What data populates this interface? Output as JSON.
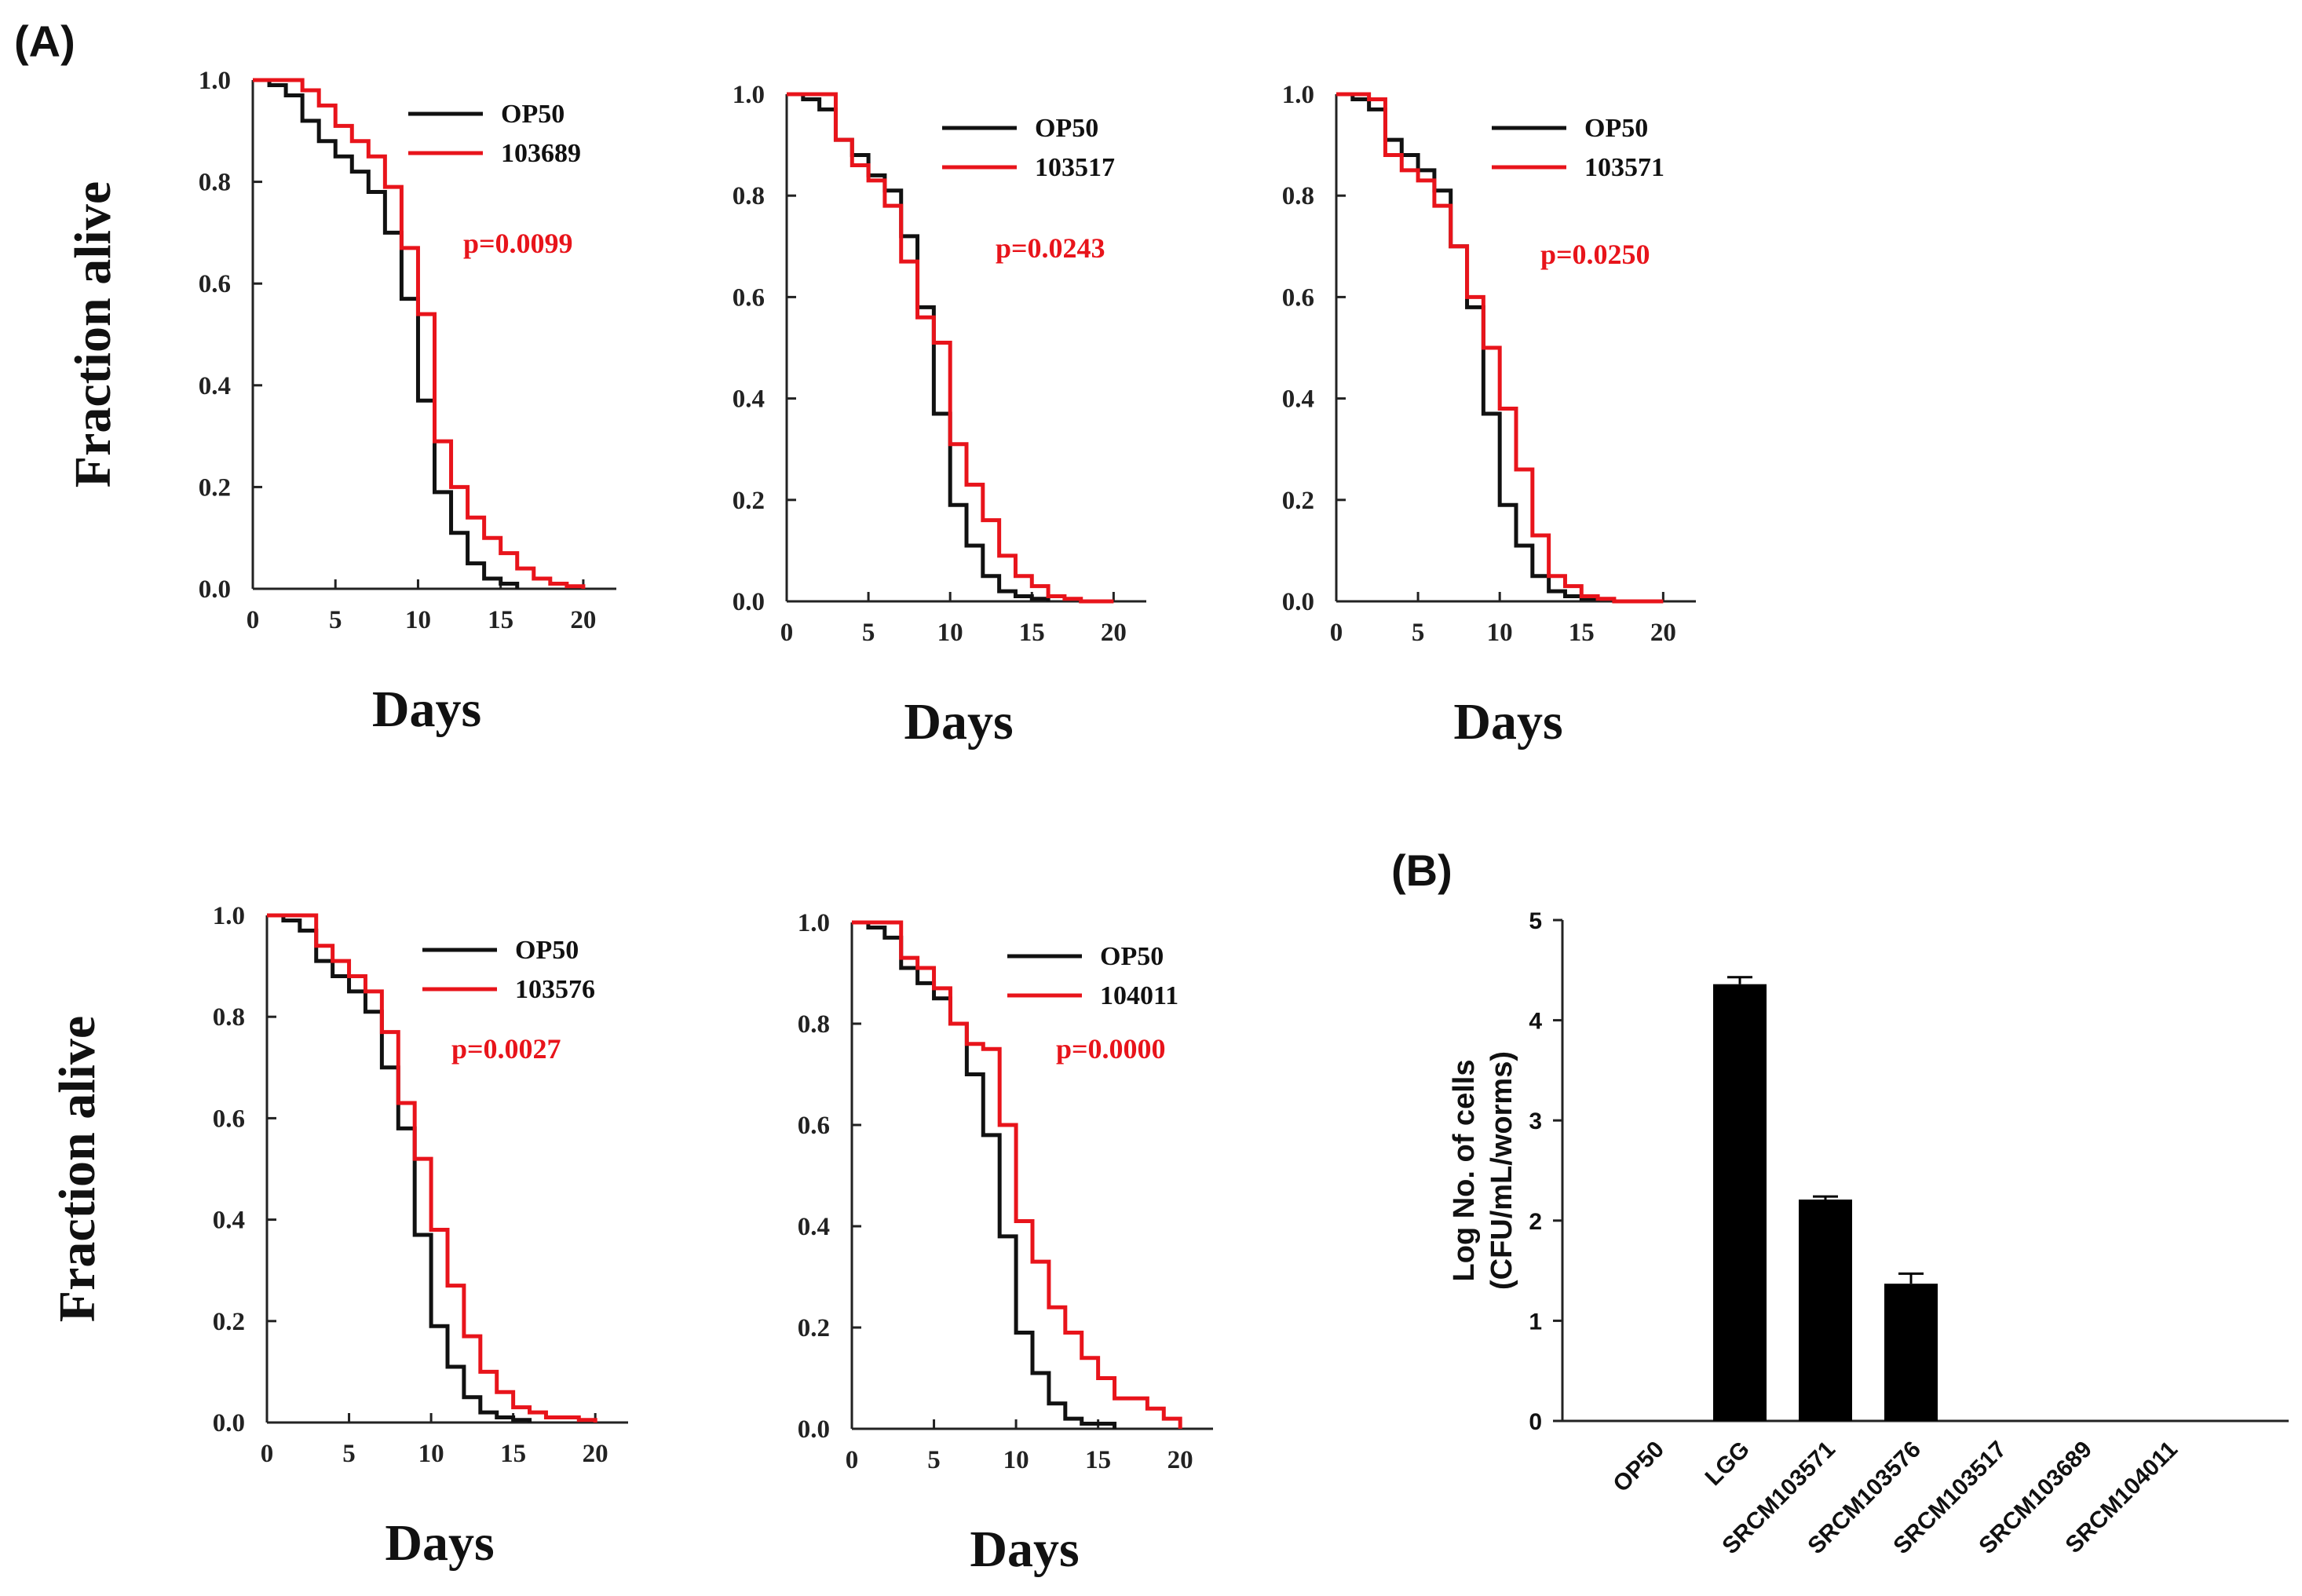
{
  "labels": {
    "panel_a": "(A)",
    "panel_b": "(B)"
  },
  "colors": {
    "op50": "#111111",
    "treated": "#e8141b",
    "axis": "#222222",
    "bar": "#000000"
  },
  "chart_data": [
    {
      "type": "line",
      "panel": "A1",
      "title": "",
      "xlabel": "Days",
      "ylabel": "Fraction alive",
      "xlim": [
        0,
        22
      ],
      "ylim": [
        0,
        1
      ],
      "xticks": [
        "0",
        "5",
        "10",
        "15",
        "20"
      ],
      "yticks": [
        "0.0",
        "0.2",
        "0.4",
        "0.6",
        "0.8",
        "1.0"
      ],
      "annotation": "p=0.0099",
      "series": [
        {
          "name": "OP50",
          "x": [
            0,
            1,
            2,
            3,
            4,
            5,
            6,
            7,
            8,
            9,
            10,
            11,
            12,
            13,
            14,
            15,
            16
          ],
          "y": [
            1.0,
            0.99,
            0.97,
            0.92,
            0.88,
            0.85,
            0.82,
            0.78,
            0.7,
            0.57,
            0.37,
            0.19,
            0.11,
            0.05,
            0.02,
            0.01,
            0.0
          ]
        },
        {
          "name": "103689",
          "x": [
            0,
            1,
            2,
            3,
            4,
            5,
            6,
            7,
            8,
            9,
            10,
            11,
            12,
            13,
            14,
            15,
            16,
            17,
            18,
            19,
            20
          ],
          "y": [
            1.0,
            1.0,
            1.0,
            0.98,
            0.95,
            0.91,
            0.88,
            0.85,
            0.79,
            0.67,
            0.54,
            0.29,
            0.2,
            0.14,
            0.1,
            0.07,
            0.04,
            0.02,
            0.01,
            0.005,
            0.0
          ]
        }
      ]
    },
    {
      "type": "line",
      "panel": "A2",
      "title": "",
      "xlabel": "Days",
      "ylabel": "",
      "xlim": [
        0,
        22
      ],
      "ylim": [
        0,
        1
      ],
      "xticks": [
        "0",
        "5",
        "10",
        "15",
        "20"
      ],
      "yticks": [
        "0.0",
        "0.2",
        "0.4",
        "0.6",
        "0.8",
        "1.0"
      ],
      "annotation": "p=0.0243",
      "series": [
        {
          "name": "OP50",
          "x": [
            0,
            1,
            2,
            3,
            4,
            5,
            6,
            7,
            8,
            9,
            10,
            11,
            12,
            13,
            14,
            15,
            16
          ],
          "y": [
            1.0,
            0.99,
            0.97,
            0.91,
            0.88,
            0.84,
            0.81,
            0.72,
            0.58,
            0.37,
            0.19,
            0.11,
            0.05,
            0.02,
            0.01,
            0.005,
            0.0
          ]
        },
        {
          "name": "103517",
          "x": [
            0,
            1,
            2,
            3,
            4,
            5,
            6,
            7,
            8,
            9,
            10,
            11,
            12,
            13,
            14,
            15,
            16,
            17,
            18,
            19,
            20
          ],
          "y": [
            1.0,
            1.0,
            1.0,
            0.91,
            0.86,
            0.83,
            0.78,
            0.67,
            0.56,
            0.51,
            0.31,
            0.23,
            0.16,
            0.09,
            0.05,
            0.03,
            0.01,
            0.005,
            0.0,
            0.0,
            0.0
          ]
        }
      ]
    },
    {
      "type": "line",
      "panel": "A3",
      "title": "",
      "xlabel": "Days",
      "ylabel": "",
      "xlim": [
        0,
        22
      ],
      "ylim": [
        0,
        1
      ],
      "xticks": [
        "0",
        "5",
        "10",
        "15",
        "20"
      ],
      "yticks": [
        "0.0",
        "0.2",
        "0.4",
        "0.6",
        "0.8",
        "1.0"
      ],
      "annotation": "p=0.0250",
      "series": [
        {
          "name": "OP50",
          "x": [
            0,
            1,
            2,
            3,
            4,
            5,
            6,
            7,
            8,
            9,
            10,
            11,
            12,
            13,
            14,
            15,
            16
          ],
          "y": [
            1.0,
            0.99,
            0.97,
            0.91,
            0.88,
            0.85,
            0.81,
            0.7,
            0.58,
            0.37,
            0.19,
            0.11,
            0.05,
            0.02,
            0.01,
            0.005,
            0.0
          ]
        },
        {
          "name": "103571",
          "x": [
            0,
            1,
            2,
            3,
            4,
            5,
            6,
            7,
            8,
            9,
            10,
            11,
            12,
            13,
            14,
            15,
            16,
            17,
            18,
            19,
            20
          ],
          "y": [
            1.0,
            1.0,
            0.99,
            0.88,
            0.85,
            0.83,
            0.78,
            0.7,
            0.6,
            0.5,
            0.38,
            0.26,
            0.13,
            0.05,
            0.03,
            0.01,
            0.005,
            0.0,
            0.0,
            0.0,
            0.0
          ]
        }
      ]
    },
    {
      "type": "line",
      "panel": "A4",
      "title": "",
      "xlabel": "Days",
      "ylabel": "Fraction alive",
      "xlim": [
        0,
        22
      ],
      "ylim": [
        0,
        1
      ],
      "xticks": [
        "0",
        "5",
        "10",
        "15",
        "20"
      ],
      "yticks": [
        "0.0",
        "0.2",
        "0.4",
        "0.6",
        "0.8",
        "1.0"
      ],
      "annotation": "p=0.0027",
      "series": [
        {
          "name": "OP50",
          "x": [
            0,
            1,
            2,
            3,
            4,
            5,
            6,
            7,
            8,
            9,
            10,
            11,
            12,
            13,
            14,
            15,
            16
          ],
          "y": [
            1.0,
            0.99,
            0.97,
            0.91,
            0.88,
            0.85,
            0.81,
            0.7,
            0.58,
            0.37,
            0.19,
            0.11,
            0.05,
            0.02,
            0.01,
            0.005,
            0.0
          ]
        },
        {
          "name": "103576",
          "x": [
            0,
            1,
            2,
            3,
            4,
            5,
            6,
            7,
            8,
            9,
            10,
            11,
            12,
            13,
            14,
            15,
            16,
            17,
            18,
            19,
            20
          ],
          "y": [
            1.0,
            1.0,
            1.0,
            0.94,
            0.91,
            0.88,
            0.85,
            0.77,
            0.63,
            0.52,
            0.38,
            0.27,
            0.17,
            0.1,
            0.06,
            0.03,
            0.02,
            0.01,
            0.01,
            0.005,
            0.0
          ]
        }
      ]
    },
    {
      "type": "line",
      "panel": "A5",
      "title": "",
      "xlabel": "Days",
      "ylabel": "",
      "xlim": [
        0,
        22
      ],
      "ylim": [
        0,
        1
      ],
      "xticks": [
        "0",
        "5",
        "10",
        "15",
        "20"
      ],
      "yticks": [
        "0.0",
        "0.2",
        "0.4",
        "0.6",
        "0.8",
        "1.0"
      ],
      "annotation": "p=0.0000",
      "series": [
        {
          "name": "OP50",
          "x": [
            0,
            1,
            2,
            3,
            4,
            5,
            6,
            7,
            8,
            9,
            10,
            11,
            12,
            13,
            14,
            15,
            16
          ],
          "y": [
            1.0,
            0.99,
            0.97,
            0.91,
            0.88,
            0.85,
            0.8,
            0.7,
            0.58,
            0.38,
            0.19,
            0.11,
            0.05,
            0.02,
            0.01,
            0.01,
            0.0
          ]
        },
        {
          "name": "104011",
          "x": [
            0,
            1,
            2,
            3,
            4,
            5,
            6,
            7,
            8,
            9,
            10,
            11,
            12,
            13,
            14,
            15,
            16,
            17,
            18,
            19,
            20
          ],
          "y": [
            1.0,
            1.0,
            1.0,
            0.93,
            0.91,
            0.87,
            0.8,
            0.76,
            0.75,
            0.6,
            0.41,
            0.33,
            0.24,
            0.19,
            0.14,
            0.1,
            0.06,
            0.06,
            0.04,
            0.02,
            0.0
          ]
        }
      ]
    },
    {
      "type": "bar",
      "panel": "B",
      "title": "",
      "xlabel": "",
      "ylabel": "Log No. of cells",
      "ylabel2": "(CFU/mL/worms)",
      "ylim": [
        0,
        5
      ],
      "yticks": [
        "0",
        "1",
        "2",
        "3",
        "4",
        "5"
      ],
      "categories": [
        "OP50",
        "LGG",
        "SRCM103571",
        "SRCM103576",
        "SRCM103517",
        "SRCM103689",
        "SRCM104011"
      ],
      "values": [
        0,
        4.36,
        2.21,
        1.37,
        0,
        0,
        0
      ],
      "errors": [
        0,
        0.07,
        0.03,
        0.1,
        0,
        0,
        0
      ]
    }
  ]
}
